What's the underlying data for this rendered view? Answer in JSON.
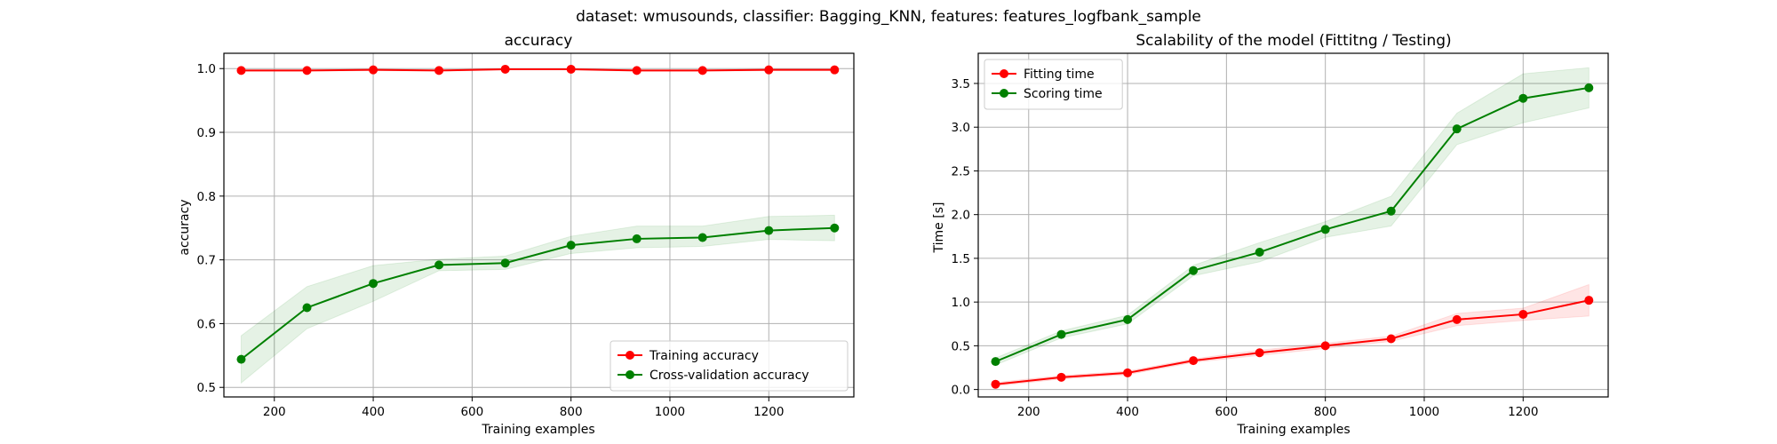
{
  "suptitle": "dataset: wmusounds, classifier: Bagging_KNN, features: features_logfbank_sample",
  "chart_data": [
    {
      "type": "line",
      "title": "accuracy",
      "xlabel": "Training examples",
      "ylabel": "accuracy",
      "xlim": [
        98,
        1372
      ],
      "ylim": [
        0.485,
        1.024
      ],
      "xticks": [
        200,
        400,
        600,
        800,
        1000,
        1200
      ],
      "xtick_labels": [
        "200",
        "400",
        "600",
        "800",
        "1000",
        "1200"
      ],
      "yticks": [
        0.5,
        0.6,
        0.7,
        0.8,
        0.9,
        1.0
      ],
      "ytick_labels": [
        "0.5",
        "0.6",
        "0.7",
        "0.8",
        "0.9",
        "1.0"
      ],
      "grid": true,
      "legend_position": "lower-right",
      "x": [
        133,
        266,
        400,
        533,
        667,
        800,
        933,
        1066,
        1200,
        1333
      ],
      "series": [
        {
          "name": "Training accuracy",
          "color": "#ff0000",
          "values": [
            0.997,
            0.997,
            0.998,
            0.997,
            0.999,
            0.999,
            0.997,
            0.997,
            0.998,
            0.998
          ],
          "band_lower": [
            0.996,
            0.996,
            0.997,
            0.996,
            0.998,
            0.998,
            0.996,
            0.996,
            0.997,
            0.997
          ],
          "band_upper": [
            0.998,
            0.998,
            0.999,
            0.998,
            1.0,
            1.0,
            0.998,
            0.998,
            0.999,
            0.999
          ]
        },
        {
          "name": "Cross-validation accuracy",
          "color": "#008000",
          "values": [
            0.544,
            0.625,
            0.663,
            0.692,
            0.695,
            0.723,
            0.733,
            0.735,
            0.746,
            0.75
          ],
          "band_lower": [
            0.507,
            0.592,
            0.635,
            0.683,
            0.685,
            0.71,
            0.719,
            0.721,
            0.732,
            0.73
          ],
          "band_upper": [
            0.581,
            0.658,
            0.691,
            0.701,
            0.706,
            0.737,
            0.753,
            0.753,
            0.768,
            0.77
          ]
        }
      ]
    },
    {
      "type": "line",
      "title": "Scalability of the model (Fittitng / Testing)",
      "xlabel": "Training examples",
      "ylabel": "Time [s]",
      "xlim": [
        98,
        1372
      ],
      "ylim": [
        -0.085,
        3.845
      ],
      "xticks": [
        200,
        400,
        600,
        800,
        1000,
        1200
      ],
      "xtick_labels": [
        "200",
        "400",
        "600",
        "800",
        "1000",
        "1200"
      ],
      "yticks": [
        0.0,
        0.5,
        1.0,
        1.5,
        2.0,
        2.5,
        3.0,
        3.5
      ],
      "ytick_labels": [
        "0.0",
        "0.5",
        "1.0",
        "1.5",
        "2.0",
        "2.5",
        "3.0",
        "3.5"
      ],
      "grid": true,
      "legend_position": "upper-left",
      "x": [
        133,
        266,
        400,
        533,
        667,
        800,
        933,
        1066,
        1200,
        1333
      ],
      "series": [
        {
          "name": "Fitting time",
          "color": "#ff0000",
          "values": [
            0.06,
            0.14,
            0.19,
            0.33,
            0.42,
            0.5,
            0.58,
            0.8,
            0.86,
            1.02
          ],
          "band_lower": [
            0.04,
            0.12,
            0.17,
            0.31,
            0.39,
            0.47,
            0.55,
            0.73,
            0.79,
            0.84
          ],
          "band_upper": [
            0.08,
            0.16,
            0.21,
            0.35,
            0.45,
            0.53,
            0.61,
            0.87,
            0.93,
            1.2
          ]
        },
        {
          "name": "Scoring time",
          "color": "#008000",
          "values": [
            0.32,
            0.63,
            0.8,
            1.36,
            1.57,
            1.83,
            2.04,
            2.98,
            3.33,
            3.45
          ],
          "band_lower": [
            0.28,
            0.59,
            0.75,
            1.3,
            1.46,
            1.74,
            1.87,
            2.8,
            3.05,
            3.22
          ],
          "band_upper": [
            0.36,
            0.67,
            0.85,
            1.42,
            1.68,
            1.92,
            2.21,
            3.16,
            3.61,
            3.68
          ]
        }
      ]
    }
  ]
}
